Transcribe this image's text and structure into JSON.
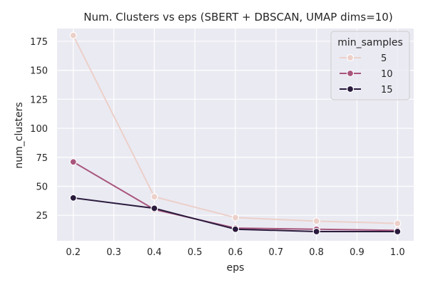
{
  "chart_data": {
    "type": "line",
    "title": "Num. Clusters vs eps (SBERT + DBSCAN, UMAP dims=10)",
    "xlabel": "eps",
    "ylabel": "num_clusters",
    "x": [
      0.2,
      0.4,
      0.6,
      0.8,
      1.0
    ],
    "xlim": [
      0.16,
      1.04
    ],
    "ylim": [
      3,
      186
    ],
    "xticks": [
      "0.2",
      "0.3",
      "0.4",
      "0.5",
      "0.6",
      "0.7",
      "0.8",
      "0.9",
      "1.0"
    ],
    "yticks": [
      "25",
      "50",
      "75",
      "100",
      "125",
      "150",
      "175"
    ],
    "grid": true,
    "legend_title": "min_samples",
    "legend_position": "top-right",
    "series": [
      {
        "name": "5",
        "color": "#ecd0ca",
        "values": [
          180,
          41,
          23,
          20,
          18
        ]
      },
      {
        "name": "10",
        "color": "#a8567d",
        "values": [
          71,
          30,
          14,
          13,
          12
        ]
      },
      {
        "name": "15",
        "color": "#2a1b3d",
        "values": [
          40,
          31,
          13,
          11,
          11
        ]
      }
    ],
    "background": "#eaeaf2",
    "grid_color": "#ffffff"
  }
}
